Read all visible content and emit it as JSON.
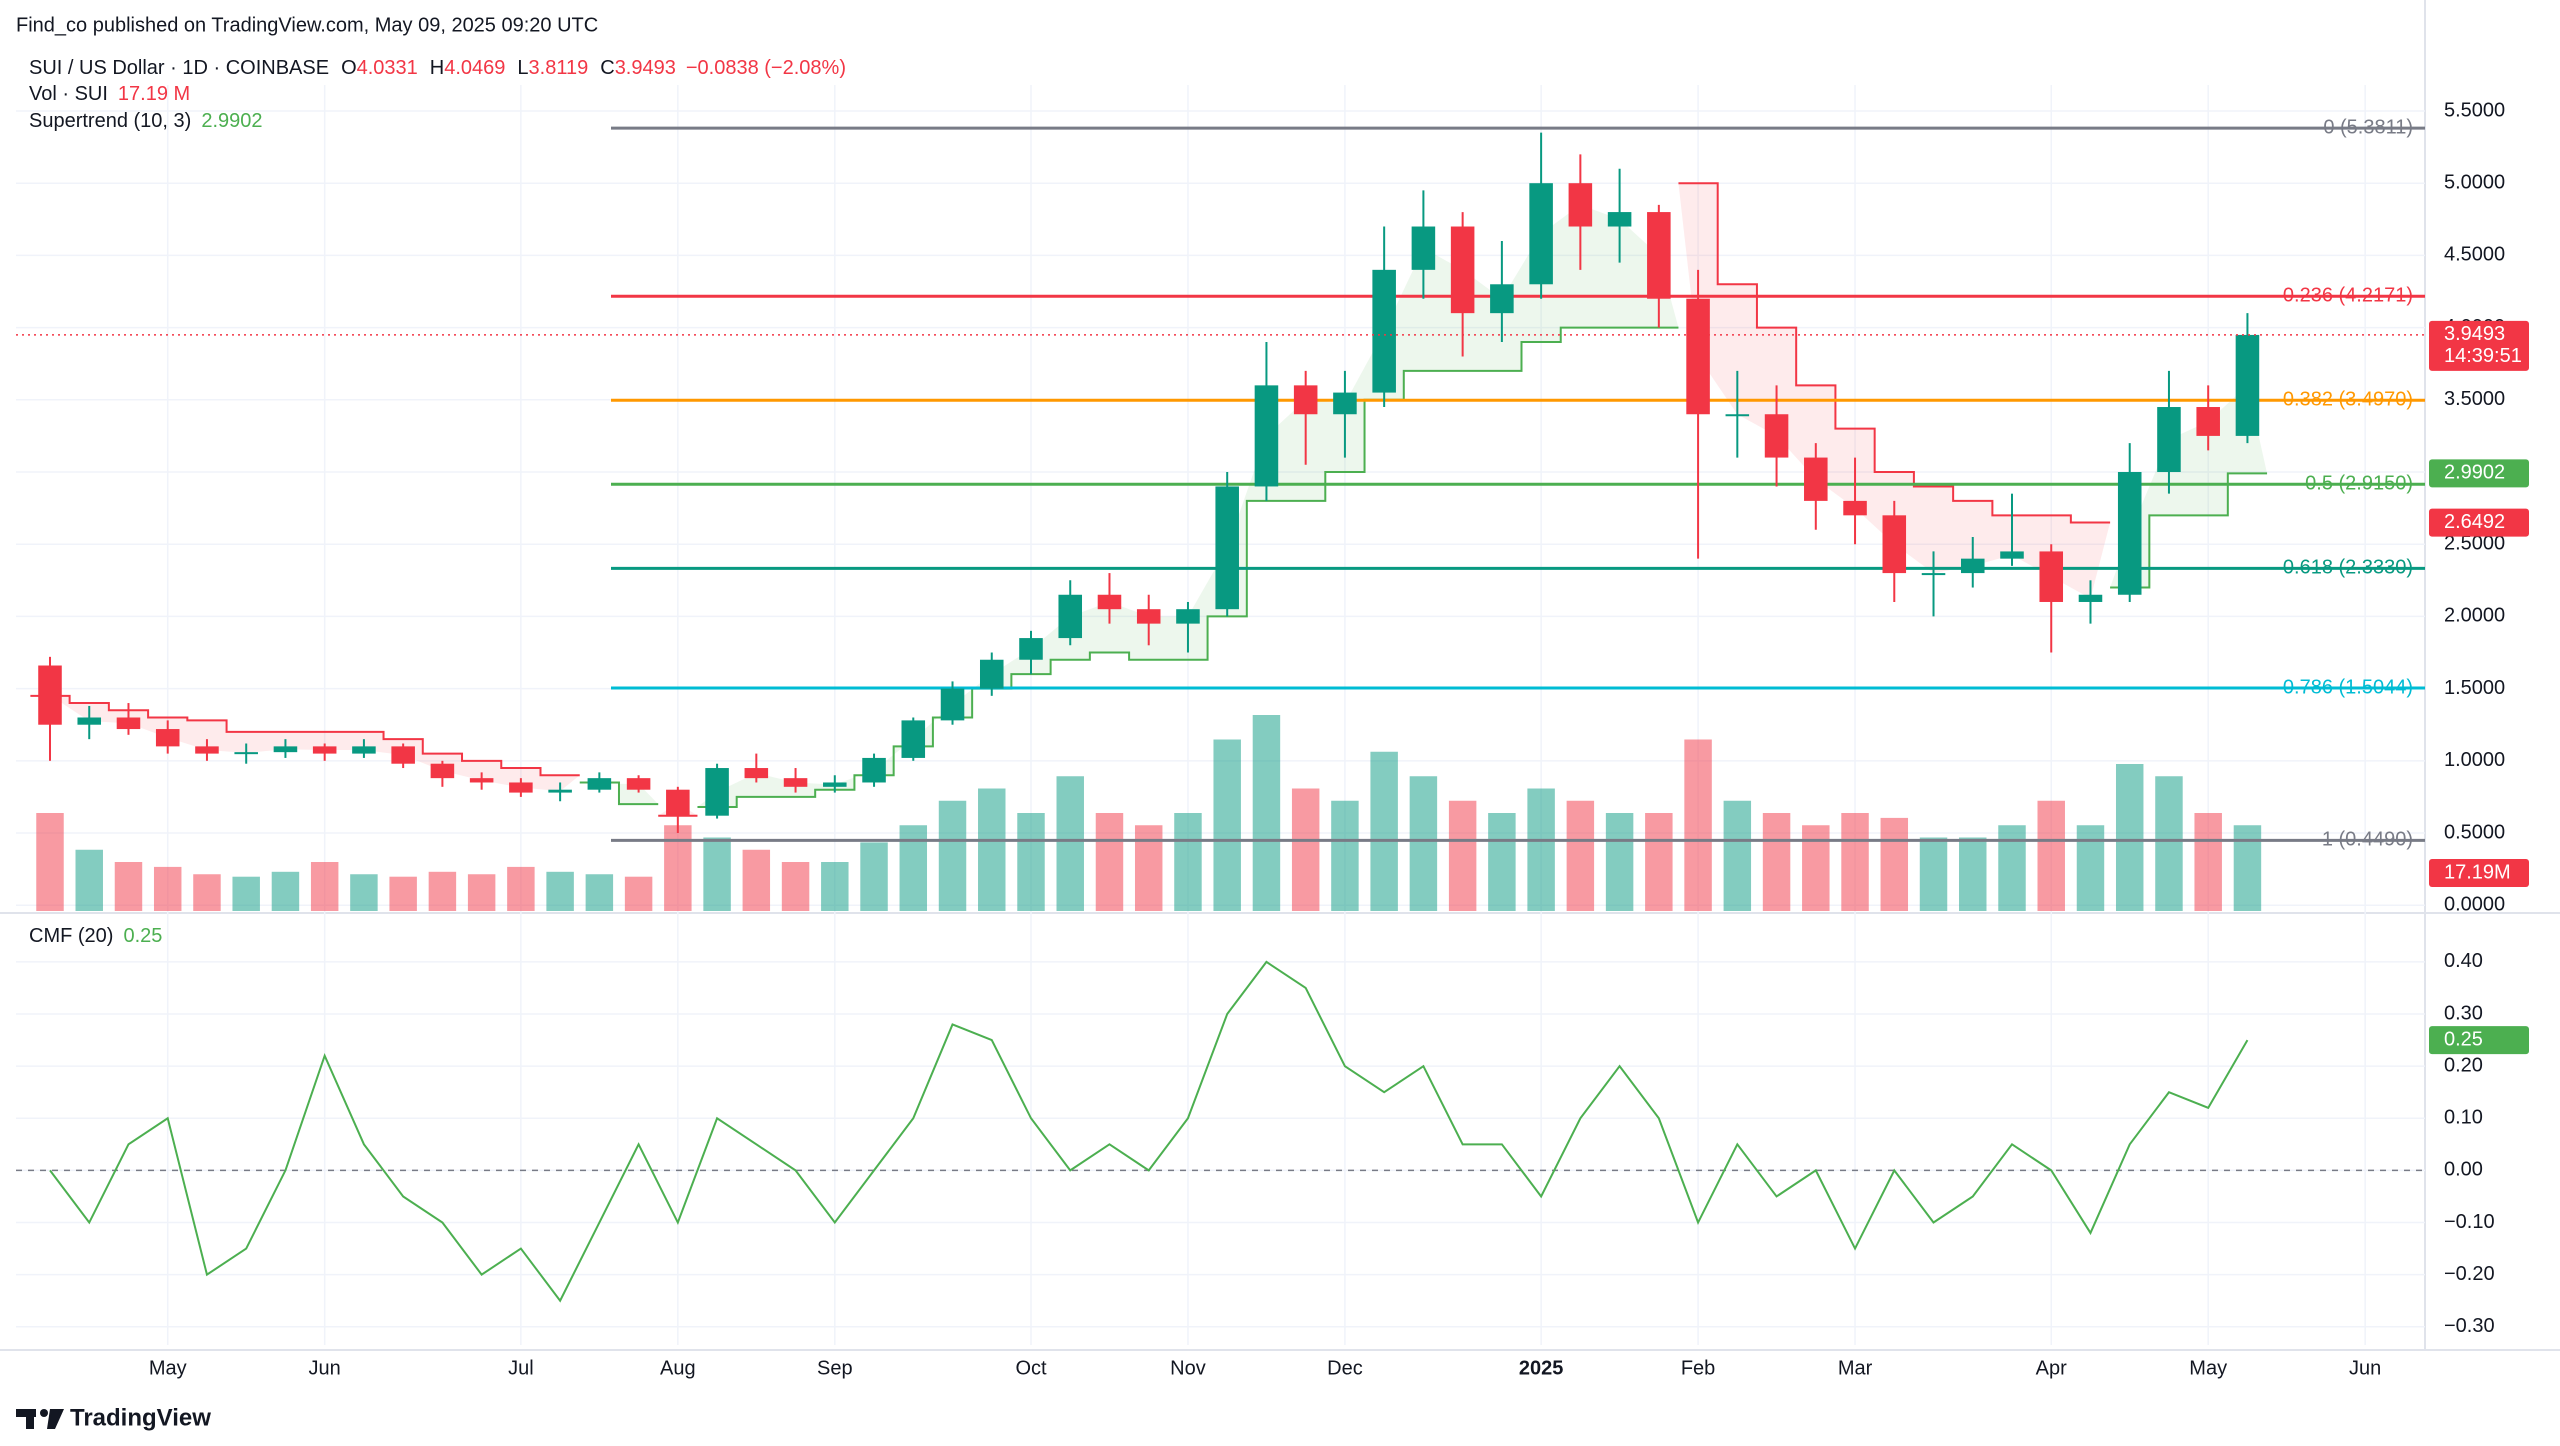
{
  "chart_data": [
    {
      "type": "candlestick",
      "publisher": "Find_co published on TradingView.com, May 09, 2025 09:20 UTC",
      "title": "SUI / US Dollar · 1D · COINBASE",
      "ohlc": [
        {
          "key": "O",
          "value": "4.0331"
        },
        {
          "key": "H",
          "value": "4.0469"
        },
        {
          "key": "L",
          "value": "3.8119"
        },
        {
          "key": "C",
          "value": "3.9493"
        }
      ],
      "change": "−0.0838 (−2.08%)",
      "footer": "TradingView",
      "categories": [
        null,
        null,
        null,
        "May",
        null,
        null,
        null,
        "Jun",
        null,
        null,
        null,
        null,
        "Jul",
        null,
        null,
        null,
        "Aug",
        null,
        null,
        null,
        "Sep",
        null,
        null,
        null,
        null,
        "Oct",
        null,
        null,
        null,
        "Nov",
        null,
        null,
        null,
        "Dec",
        null,
        null,
        null,
        null,
        "2025",
        null,
        null,
        null,
        "Feb",
        null,
        null,
        null,
        "Mar",
        null,
        null,
        null,
        null,
        "Apr",
        null,
        null,
        null,
        "May",
        null,
        null,
        null,
        "Jun"
      ],
      "open": [
        1.66,
        1.25,
        1.3,
        1.22,
        1.1,
        1.05,
        1.06,
        1.1,
        1.05,
        1.1,
        0.98,
        0.88,
        0.85,
        0.78,
        0.8,
        0.88,
        0.8,
        0.62,
        0.95,
        0.88,
        0.82,
        0.85,
        1.02,
        1.28,
        1.5,
        1.7,
        1.85,
        2.15,
        2.05,
        1.95,
        2.05,
        2.9,
        3.6,
        3.4,
        3.55,
        4.4,
        4.7,
        4.1,
        4.3,
        5.0,
        4.7,
        4.8,
        4.2,
        3.4,
        3.4,
        3.1,
        2.8,
        2.7,
        2.3,
        2.3,
        2.4,
        2.45,
        2.1,
        2.15,
        3.0,
        3.45,
        3.25,
        null,
        null,
        null
      ],
      "high": [
        1.72,
        1.38,
        1.4,
        1.28,
        1.15,
        1.12,
        1.15,
        1.12,
        1.15,
        1.12,
        1.0,
        0.92,
        0.88,
        0.85,
        0.92,
        0.9,
        0.82,
        0.98,
        1.05,
        0.95,
        0.9,
        1.05,
        1.3,
        1.55,
        1.75,
        1.9,
        2.25,
        2.3,
        2.15,
        2.1,
        3.0,
        3.9,
        3.7,
        3.7,
        4.7,
        4.95,
        4.8,
        4.6,
        5.35,
        5.2,
        5.1,
        4.85,
        4.4,
        3.7,
        3.6,
        3.2,
        3.1,
        2.8,
        2.45,
        2.55,
        2.85,
        2.5,
        2.25,
        3.2,
        3.7,
        3.6,
        4.1,
        null,
        null,
        null
      ],
      "low": [
        1.0,
        1.15,
        1.18,
        1.05,
        1.0,
        0.98,
        1.02,
        1.0,
        1.02,
        0.95,
        0.82,
        0.8,
        0.75,
        0.72,
        0.78,
        0.78,
        0.5,
        0.6,
        0.85,
        0.78,
        0.78,
        0.82,
        1.0,
        1.25,
        1.45,
        1.6,
        1.8,
        1.95,
        1.8,
        1.75,
        2.0,
        2.8,
        3.05,
        3.1,
        3.45,
        4.2,
        3.8,
        3.9,
        4.2,
        4.4,
        4.45,
        4.0,
        2.4,
        3.1,
        2.9,
        2.6,
        2.5,
        2.1,
        2.0,
        2.2,
        2.35,
        1.75,
        1.95,
        2.1,
        2.85,
        3.15,
        3.2,
        null,
        null,
        null
      ],
      "close": [
        1.25,
        1.3,
        1.22,
        1.1,
        1.05,
        1.06,
        1.1,
        1.05,
        1.1,
        0.98,
        0.88,
        0.85,
        0.78,
        0.8,
        0.88,
        0.8,
        0.62,
        0.95,
        0.88,
        0.82,
        0.85,
        1.02,
        1.28,
        1.5,
        1.7,
        1.85,
        2.15,
        2.05,
        1.95,
        2.05,
        2.9,
        3.6,
        3.4,
        3.55,
        4.4,
        4.7,
        4.1,
        4.3,
        5.0,
        4.7,
        4.8,
        4.2,
        3.4,
        3.4,
        3.1,
        2.8,
        2.7,
        2.3,
        2.3,
        2.4,
        2.45,
        2.1,
        2.15,
        3.0,
        3.45,
        3.25,
        3.9493,
        null,
        null,
        null
      ],
      "up_color": "#089981",
      "down_color": "#f23645",
      "volume": {
        "name": "Vol · SUI",
        "last_label": "17.19 M",
        "tag_label": "17.19M",
        "up_color": "rgba(8,153,129,0.5)",
        "down_color": "rgba(242,54,69,0.5)",
        "values": [
          40,
          25,
          20,
          18,
          15,
          14,
          16,
          20,
          15,
          14,
          16,
          15,
          18,
          16,
          15,
          14,
          35,
          30,
          25,
          20,
          20,
          28,
          35,
          45,
          50,
          40,
          55,
          40,
          35,
          40,
          70,
          80,
          50,
          45,
          65,
          55,
          45,
          40,
          50,
          45,
          40,
          40,
          70,
          45,
          40,
          35,
          40,
          38,
          30,
          30,
          35,
          45,
          35,
          60,
          55,
          40,
          35,
          null,
          null,
          null
        ]
      },
      "supertrend": {
        "name": "Supertrend (10, 3)",
        "up_color": "#4caf50",
        "down_color": "#f23645",
        "values": [
          1.45,
          1.4,
          1.35,
          1.3,
          1.28,
          1.2,
          1.2,
          1.2,
          1.2,
          1.15,
          1.05,
          1.0,
          0.95,
          0.9,
          0.85,
          0.7,
          0.62,
          0.68,
          0.75,
          0.75,
          0.8,
          0.9,
          1.1,
          1.3,
          1.5,
          1.6,
          1.7,
          1.75,
          1.7,
          1.7,
          2.0,
          2.8,
          2.8,
          3.0,
          3.5,
          3.7,
          3.7,
          3.7,
          3.9,
          4.0,
          4.0,
          4.0,
          5.0,
          4.3,
          4.0,
          3.6,
          3.3,
          3.0,
          2.9,
          2.8,
          2.7,
          2.7,
          2.65,
          2.2,
          2.7,
          2.7,
          2.9902,
          null,
          null,
          null
        ]
      },
      "fib_levels": [
        {
          "label": "0 (5.3811)",
          "value": 5.3811,
          "color": "#787b86"
        },
        {
          "label": "0.236 (4.2171)",
          "value": 4.2171,
          "color": "#f23645"
        },
        {
          "label": "0.382 (3.4970)",
          "value": 3.497,
          "color": "#ff9800"
        },
        {
          "label": "0.5 (2.9150)",
          "value": 2.915,
          "color": "#4caf50"
        },
        {
          "label": "0.618 (2.3330)",
          "value": 2.333,
          "color": "#089981"
        },
        {
          "label": "0.786 (1.5044)",
          "value": 1.5044,
          "color": "#00bcd4"
        },
        {
          "label": "1 (0.4490)",
          "value": 0.449,
          "color": "#787b86"
        }
      ],
      "tags": [
        {
          "value": 3.9493,
          "label": "3.9493",
          "sub": "14:39:51",
          "color": "#f23645"
        },
        {
          "value": 2.6492,
          "label": "2.6492",
          "color": "#f23645"
        }
      ],
      "ylim": [
        -0.04,
        5.68
      ],
      "yticks": [
        {
          "value": 0,
          "label": "0.0000"
        },
        {
          "value": 0.5,
          "label": "0.5000"
        },
        {
          "value": 1,
          "label": "1.0000"
        },
        {
          "value": 1.5,
          "label": "1.5000"
        },
        {
          "value": 2,
          "label": "2.0000"
        },
        {
          "value": 2.5,
          "label": "2.5000"
        },
        {
          "value": 3,
          "label": "3.0000"
        },
        {
          "value": 3.5,
          "label": "3.5000"
        },
        {
          "value": 4,
          "label": "4.0000"
        },
        {
          "value": 4.5,
          "label": "4.5000"
        },
        {
          "value": 5,
          "label": "5.0000"
        },
        {
          "value": 5.5,
          "label": "5.5000"
        }
      ],
      "grid": true
    },
    {
      "type": "line",
      "name": "CMF (20)",
      "color": "#4caf50",
      "zero_line": true,
      "values": [
        0.0,
        -0.1,
        0.05,
        0.1,
        -0.2,
        -0.15,
        0.0,
        0.22,
        0.05,
        -0.05,
        -0.1,
        -0.2,
        -0.15,
        -0.25,
        -0.1,
        0.05,
        -0.1,
        0.1,
        0.05,
        0.0,
        -0.1,
        0.0,
        0.1,
        0.28,
        0.25,
        0.1,
        0.0,
        0.05,
        0.0,
        0.1,
        0.3,
        0.4,
        0.35,
        0.2,
        0.15,
        0.2,
        0.05,
        0.05,
        -0.05,
        0.1,
        0.2,
        0.1,
        -0.1,
        0.05,
        -0.05,
        0.0,
        -0.15,
        0.0,
        -0.1,
        -0.05,
        0.05,
        0.0,
        -0.12,
        0.05,
        0.15,
        0.12,
        0.25,
        null,
        null,
        null
      ],
      "ylim": [
        -0.335,
        0.49
      ],
      "yticks": [
        {
          "value": -0.3,
          "label": "−0.30"
        },
        {
          "value": -0.2,
          "label": "−0.20"
        },
        {
          "value": -0.1,
          "label": "−0.10"
        },
        {
          "value": 0,
          "label": "0.00"
        },
        {
          "value": 0.1,
          "label": "0.10"
        },
        {
          "value": 0.2,
          "label": "0.20"
        },
        {
          "value": 0.3,
          "label": "0.30"
        },
        {
          "value": 0.4,
          "label": "0.40"
        }
      ],
      "grid": true
    }
  ]
}
